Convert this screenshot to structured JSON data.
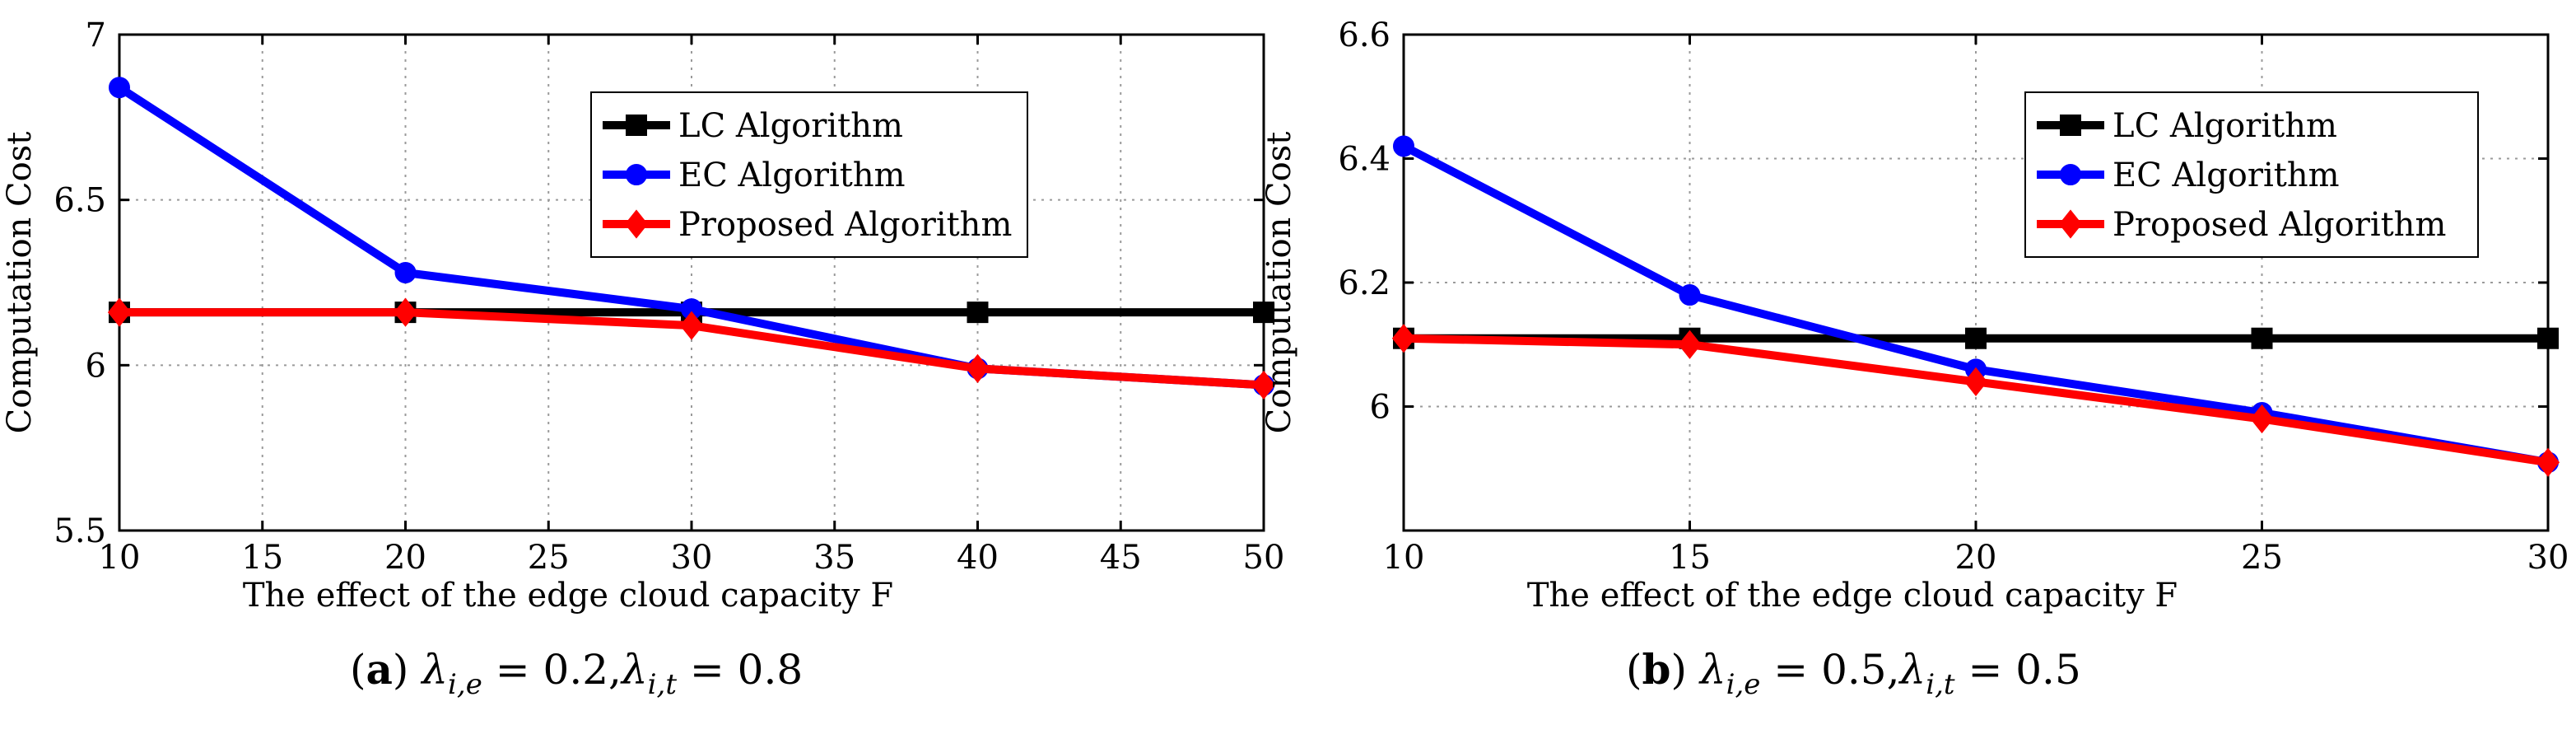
{
  "chart_data": [
    {
      "type": "line",
      "panel": "a",
      "title": "",
      "xlabel": "The effect of the edge cloud capacity F",
      "ylabel": "Computation Cost",
      "xlim": [
        10,
        50
      ],
      "ylim": [
        5.5,
        7.0
      ],
      "xticks": [
        10,
        15,
        20,
        25,
        30,
        35,
        40,
        45,
        50
      ],
      "yticks": [
        5.5,
        6.0,
        6.5,
        7.0
      ],
      "ytick_labels": [
        "5.5",
        "6",
        "6.5",
        "7"
      ],
      "grid": true,
      "legend": "top-right",
      "series": [
        {
          "name": "LC Algorithm",
          "color": "#000000",
          "marker": "square",
          "x": [
            10,
            20,
            30,
            40,
            50
          ],
          "values": [
            6.16,
            6.16,
            6.16,
            6.16,
            6.16
          ]
        },
        {
          "name": "EC Algorithm",
          "color": "#0000ff",
          "marker": "circle",
          "x": [
            10,
            20,
            30,
            40,
            50
          ],
          "values": [
            6.84,
            6.28,
            6.17,
            5.99,
            5.94
          ]
        },
        {
          "name": "Proposed Algorithm",
          "color": "#ff0000",
          "marker": "diamond",
          "x": [
            10,
            20,
            30,
            40,
            50
          ],
          "values": [
            6.16,
            6.16,
            6.12,
            5.99,
            5.94
          ]
        }
      ],
      "caption": {
        "letter": "a",
        "lambda": "λ",
        "sub1": "i,e",
        "val1": "= 0.2,",
        "sub2": "i,t",
        "val2": "= 0.8"
      }
    },
    {
      "type": "line",
      "panel": "b",
      "title": "",
      "xlabel": "The effect of the edge cloud capacity F",
      "ylabel": "Computation Cost",
      "xlim": [
        10,
        30
      ],
      "ylim": [
        5.8,
        6.6
      ],
      "xticks": [
        10,
        15,
        20,
        25,
        30
      ],
      "yticks": [
        6.0,
        6.2,
        6.4,
        6.6
      ],
      "ytick_labels": [
        "6",
        "6.2",
        "6.4",
        "6.6"
      ],
      "grid": true,
      "legend": "top-right",
      "series": [
        {
          "name": "LC Algorithm",
          "color": "#000000",
          "marker": "square",
          "x": [
            10,
            15,
            20,
            25,
            30
          ],
          "values": [
            6.11,
            6.11,
            6.11,
            6.11,
            6.11
          ]
        },
        {
          "name": "EC Algorithm",
          "color": "#0000ff",
          "marker": "circle",
          "x": [
            10,
            15,
            20,
            25,
            30
          ],
          "values": [
            6.42,
            6.18,
            6.06,
            5.99,
            5.91
          ]
        },
        {
          "name": "Proposed Algorithm",
          "color": "#ff0000",
          "marker": "diamond",
          "x": [
            10,
            15,
            20,
            25,
            30
          ],
          "values": [
            6.11,
            6.1,
            6.04,
            5.98,
            5.91
          ]
        }
      ],
      "caption": {
        "letter": "b",
        "lambda": "λ",
        "sub1": "i,e",
        "val1": "= 0.5,",
        "sub2": "i,t",
        "val2": "= 0.5"
      }
    }
  ]
}
